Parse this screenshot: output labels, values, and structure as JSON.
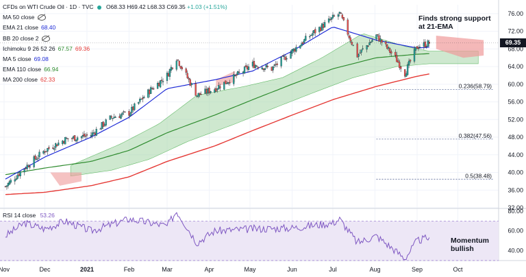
{
  "header": {
    "symbol": "CFDs on WTI Crude Oil · 1D · TVC",
    "open": "O68.33",
    "high": "H69.42",
    "low": "L68.33",
    "close": "C69.35",
    "change": "+1.03 (+1.51%)"
  },
  "indicators": [
    {
      "label": "MA 50 close",
      "value": "",
      "hidden": true
    },
    {
      "label": "EMA 21 close",
      "value": "68.40",
      "color": "#1e2bd6"
    },
    {
      "label": "BB 20 close 2",
      "value": "",
      "hidden": true
    },
    {
      "label": "Ichimoku 9 26 52 26",
      "value": "67.57",
      "value2": "69.36",
      "color": "#2e8b2e",
      "color2": "#e53935"
    },
    {
      "label": "MA 5 close",
      "value": "69.08",
      "color": "#1e2bd6"
    },
    {
      "label": "EMA 110 close",
      "value": "66.94",
      "color": "#2e8b2e"
    },
    {
      "label": "MA 200 close",
      "value": "62.33",
      "color": "#e53935"
    }
  ],
  "annotations": {
    "support_line1": "Finds strong support",
    "support_line2": "at 21-EMA",
    "momentum_line1": "Momentum",
    "momentum_line2": "bullish"
  },
  "last_price": "69.35",
  "rsi_label": "RSI 14 close",
  "rsi_value": "53.26",
  "colors": {
    "up": "#26a69a",
    "down": "#ef5350",
    "ema21": "#1e2bd6",
    "ema110": "#2e8b2e",
    "ma200": "#e53935",
    "rsi": "#7e57c2",
    "rsi_band": "#ede7f6",
    "cloud_bull": "#a5d6a7",
    "cloud_bear": "#ef9a9a"
  },
  "chart_data": [
    {
      "type": "line",
      "title": "CFDs on WTI Crude Oil · 1D · TVC",
      "x_axis_labels": [
        "Nov",
        "Dec",
        "2021",
        "Feb",
        "Mar",
        "Apr",
        "May",
        "Jun",
        "Jul",
        "Aug",
        "Sep",
        "Oct"
      ],
      "x_axis_dates": [
        "2020-11-01",
        "2020-12-01",
        "2021-01-01",
        "2021-02-01",
        "2021-03-01",
        "2021-04-01",
        "2021-05-01",
        "2021-06-01",
        "2021-07-01",
        "2021-08-01",
        "2021-09-01",
        "2021-10-01"
      ],
      "y_axis_ticks": [
        "76.00",
        "72.00",
        "68.00",
        "64.00",
        "60.00",
        "56.00",
        "52.00",
        "48.00",
        "44.00",
        "40.00",
        "36.00",
        "32.00"
      ],
      "ylim": [
        32,
        78
      ],
      "grid": true,
      "series": [
        {
          "name": "CFDs on WTI Crude Oil",
          "x": [
            "2020-11-02",
            "2020-11-16",
            "2020-12-01",
            "2020-12-16",
            "2021-01-04",
            "2021-01-19",
            "2021-02-01",
            "2021-02-16",
            "2021-03-01",
            "2021-03-08",
            "2021-03-23",
            "2021-04-05",
            "2021-04-19",
            "2021-05-03",
            "2021-05-17",
            "2021-06-01",
            "2021-06-16",
            "2021-07-01",
            "2021-07-06",
            "2021-07-19",
            "2021-08-02",
            "2021-08-16",
            "2021-08-23",
            "2021-09-01",
            "2021-09-10"
          ],
          "values": [
            36.8,
            41.0,
            45.0,
            47.5,
            48.5,
            52.5,
            53.5,
            58.5,
            62.0,
            66.0,
            57.5,
            59.0,
            61.5,
            64.5,
            63.5,
            67.5,
            71.5,
            75.0,
            76.0,
            66.5,
            71.0,
            66.0,
            62.5,
            68.5,
            69.35
          ]
        },
        {
          "name": "EMA 21 close",
          "x": [
            "2020-11-02",
            "2020-12-01",
            "2021-01-04",
            "2021-02-01",
            "2021-03-01",
            "2021-04-05",
            "2021-05-03",
            "2021-06-01",
            "2021-07-01",
            "2021-08-02",
            "2021-09-01",
            "2021-09-10"
          ],
          "values": [
            38.5,
            43.5,
            48.0,
            52.5,
            59.0,
            61.0,
            63.0,
            67.5,
            73.0,
            70.0,
            68.2,
            68.4
          ]
        },
        {
          "name": "EMA 110 close",
          "x": [
            "2020-11-02",
            "2020-12-01",
            "2021-01-04",
            "2021-02-01",
            "2021-03-01",
            "2021-04-05",
            "2021-05-03",
            "2021-06-01",
            "2021-07-01",
            "2021-08-02",
            "2021-09-01",
            "2021-09-10"
          ],
          "values": [
            39.5,
            41.0,
            42.5,
            45.0,
            49.0,
            53.0,
            56.5,
            60.0,
            63.5,
            66.0,
            66.8,
            66.94
          ]
        },
        {
          "name": "MA 200 close",
          "x": [
            "2020-11-02",
            "2020-12-01",
            "2021-01-04",
            "2021-02-01",
            "2021-03-01",
            "2021-04-05",
            "2021-05-03",
            "2021-06-01",
            "2021-07-01",
            "2021-08-02",
            "2021-09-01",
            "2021-09-10"
          ],
          "values": [
            35.0,
            35.5,
            37.0,
            39.0,
            42.5,
            46.0,
            49.5,
            53.0,
            56.5,
            59.5,
            61.8,
            62.33
          ]
        }
      ],
      "fibonacci": [
        {
          "label": "0.236(58.79)",
          "value": 58.79
        },
        {
          "label": "0.382(47.56)",
          "value": 47.56
        },
        {
          "label": "0.5(38.48)",
          "value": 38.48
        }
      ]
    },
    {
      "type": "line",
      "title": "RSI 14 close",
      "y_axis_ticks": [
        "80.00",
        "60.00",
        "40.00"
      ],
      "ylim": [
        30,
        82
      ],
      "series": [
        {
          "name": "RSI 14 close",
          "x": [
            "2020-11-02",
            "2020-11-16",
            "2020-12-01",
            "2020-12-16",
            "2021-01-04",
            "2021-02-01",
            "2021-03-01",
            "2021-03-08",
            "2021-03-23",
            "2021-04-05",
            "2021-05-03",
            "2021-06-01",
            "2021-07-01",
            "2021-07-06",
            "2021-07-19",
            "2021-08-02",
            "2021-08-16",
            "2021-08-23",
            "2021-09-01",
            "2021-09-10"
          ],
          "values": [
            55,
            68,
            62,
            70,
            60,
            72,
            65,
            80,
            48,
            60,
            62,
            63,
            68,
            72,
            48,
            55,
            40,
            32,
            50,
            53.26
          ]
        }
      ]
    }
  ]
}
